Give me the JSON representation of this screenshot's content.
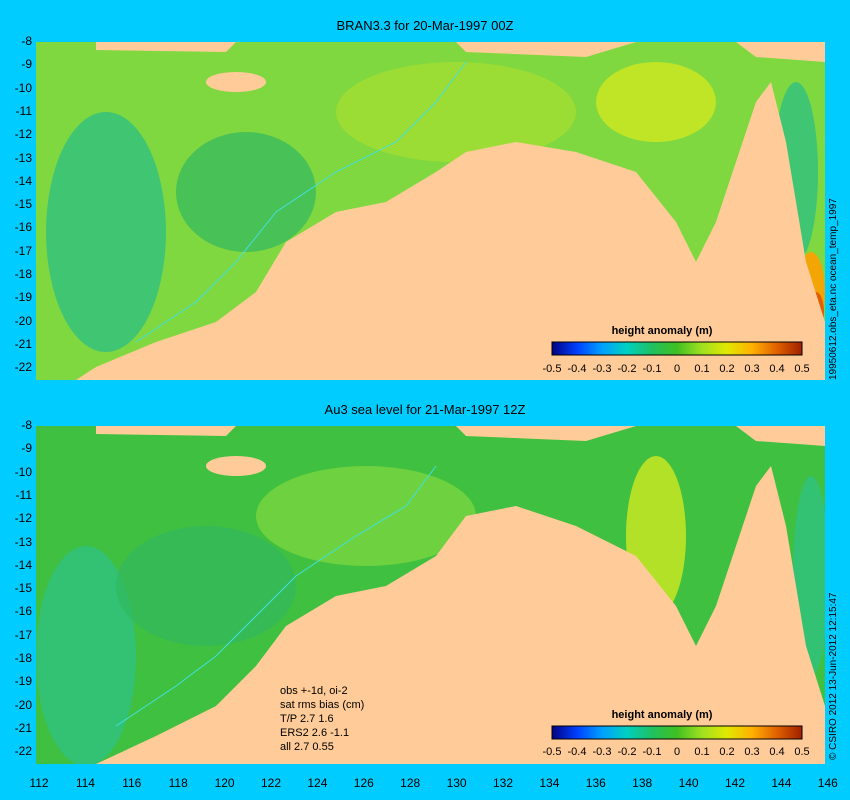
{
  "panels": [
    {
      "title": "BRAN3.3 for 20-Mar-1997 00Z"
    },
    {
      "title": "Au3 sea level  for 21-Mar-1997 12Z"
    }
  ],
  "y_ticks": [
    "-8",
    "-9",
    "-10",
    "-11",
    "-12",
    "-13",
    "-14",
    "-15",
    "-16",
    "-17",
    "-18",
    "-19",
    "-20",
    "-21",
    "-22"
  ],
  "x_ticks": [
    "112",
    "114",
    "116",
    "118",
    "120",
    "122",
    "124",
    "126",
    "128",
    "130",
    "132",
    "134",
    "136",
    "138",
    "140",
    "142",
    "144",
    "146"
  ],
  "colorbar": {
    "title": "height anomaly  (m)",
    "labels": [
      "-0.5",
      "-0.4",
      "-0.3",
      "-0.2",
      "-0.1",
      "0",
      "0.1",
      "0.2",
      "0.3",
      "0.4",
      "0.5"
    ],
    "colors": [
      "#000080",
      "#0040ff",
      "#00a0ff",
      "#00d0c0",
      "#20c060",
      "#40c020",
      "#a0e020",
      "#e0e800",
      "#ffb000",
      "#e06000",
      "#a02000"
    ]
  },
  "side_labels": {
    "top": "19950612.obs_eta.nc   ocean_temp_1997",
    "bottom": "© CSIRO  2012  13-Jun-2012 12:15:47"
  },
  "notes": [
    "obs +-1d, oi-2",
    "sat rms bias (cm)",
    "T/P  2.7 1.6",
    "ERS2 2.6 -1.1",
    "all 2.7 0.55"
  ],
  "colors": {
    "background": "#00ccff",
    "land": "#ffcc99",
    "ocean_base": "#80d840",
    "coastline_contour": "#40e0e0"
  }
}
